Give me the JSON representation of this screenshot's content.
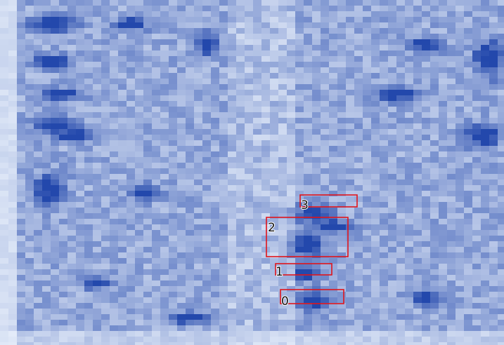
{
  "detections": [
    {
      "label": "0"
    },
    {
      "label": "1"
    },
    {
      "label": "2"
    },
    {
      "label": "3"
    }
  ]
}
